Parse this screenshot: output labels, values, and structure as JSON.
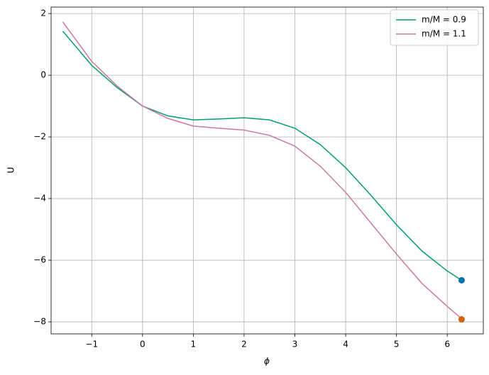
{
  "chart_data": {
    "type": "line",
    "xlabel": "ϕ",
    "ylabel": "U",
    "x": [
      -1.571,
      -1,
      -0.5,
      0,
      0.5,
      1,
      1.5,
      2,
      2.5,
      3,
      3.5,
      4,
      4.5,
      5,
      5.5,
      6,
      6.283
    ],
    "series": [
      {
        "name": "m/M = 0.9",
        "color": "#009e73",
        "values": [
          1.43,
          0.32,
          -0.4,
          -1.0,
          -1.32,
          -1.45,
          -1.42,
          -1.38,
          -1.45,
          -1.72,
          -2.25,
          -3.0,
          -3.9,
          -4.85,
          -5.7,
          -6.35,
          -6.65
        ]
      },
      {
        "name": "m/M = 1.1",
        "color": "#cc79a7",
        "values": [
          1.73,
          0.45,
          -0.35,
          -1.0,
          -1.4,
          -1.65,
          -1.72,
          -1.78,
          -1.95,
          -2.3,
          -2.95,
          -3.8,
          -4.8,
          -5.8,
          -6.75,
          -7.5,
          -7.9
        ]
      }
    ],
    "markers": [
      {
        "x": 6.283,
        "y": -6.65,
        "color": "#0072b2"
      },
      {
        "x": 6.283,
        "y": -7.92,
        "color": "#d55e00"
      }
    ],
    "xlim": [
      -1.8,
      6.71
    ],
    "ylim": [
      -8.39,
      2.21
    ],
    "xticks": [
      {
        "value": -1,
        "label": "−1"
      },
      0,
      1,
      2,
      3,
      4,
      5,
      6
    ],
    "yticks": [
      {
        "value": -8,
        "label": "−8"
      },
      {
        "value": -6,
        "label": "−6"
      },
      {
        "value": -4,
        "label": "−4"
      },
      {
        "value": -2,
        "label": "−2"
      },
      0,
      2
    ],
    "grid": true,
    "legend": "upper right"
  }
}
